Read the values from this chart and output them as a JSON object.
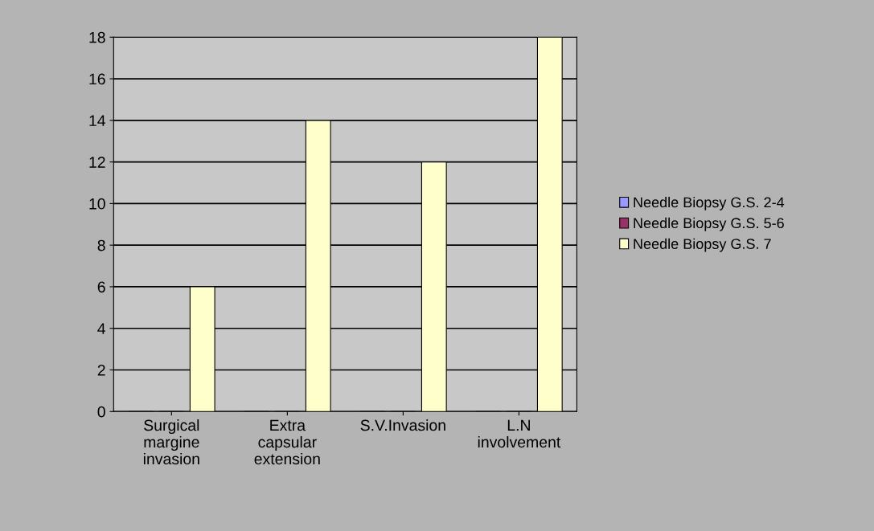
{
  "chart_data": {
    "type": "bar",
    "categories": [
      "Surgical\nmargine\ninvasion",
      "Extra\ncapsular\nextension",
      "S.V.Invasion",
      "L.N\ninvolvement"
    ],
    "series": [
      {
        "name": "Needle Biopsy G.S. 2-4",
        "color": "#9999ff",
        "values": [
          0,
          0,
          0,
          0
        ]
      },
      {
        "name": "Needle Biopsy G.S. 5-6",
        "color": "#993366",
        "values": [
          0,
          0,
          0,
          0
        ]
      },
      {
        "name": "Needle Biopsy G.S. 7",
        "color": "#ffffcc",
        "values": [
          6,
          14,
          12,
          18
        ]
      }
    ],
    "ylim": [
      0,
      18
    ],
    "yticks": [
      0,
      2,
      4,
      6,
      8,
      10,
      12,
      14,
      16,
      18
    ],
    "grid": "y",
    "legend": "right"
  }
}
